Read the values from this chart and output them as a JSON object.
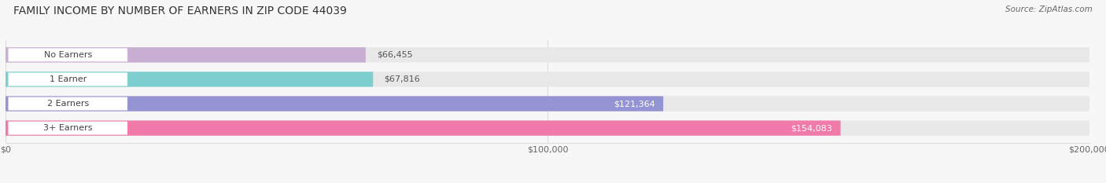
{
  "title": "FAMILY INCOME BY NUMBER OF EARNERS IN ZIP CODE 44039",
  "source": "Source: ZipAtlas.com",
  "categories": [
    "No Earners",
    "1 Earner",
    "2 Earners",
    "3+ Earners"
  ],
  "values": [
    66455,
    67816,
    121364,
    154083
  ],
  "labels": [
    "$66,455",
    "$67,816",
    "$121,364",
    "$154,083"
  ],
  "bar_colors": [
    "#c9aed4",
    "#7dcfcf",
    "#9494d4",
    "#f07aaa"
  ],
  "bar_bg_color": "#e8e8e8",
  "max_value": 200000,
  "xticks": [
    0,
    100000,
    200000
  ],
  "xtick_labels": [
    "$0",
    "$100,000",
    "$200,000"
  ],
  "title_fontsize": 10,
  "label_fontsize": 8,
  "source_fontsize": 7.5,
  "bg_color": "#f7f7f7",
  "pill_bg_color": "#ffffff",
  "pill_text_color": "#444444",
  "value_label_dark": "#555555",
  "value_label_light": "#ffffff"
}
